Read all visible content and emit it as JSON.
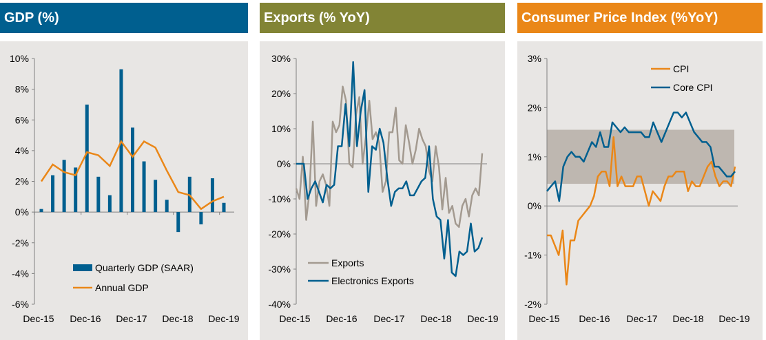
{
  "colors": {
    "navy": "#005f8f",
    "olive": "#828435",
    "orange": "#ea8718",
    "grey": "#a39a90",
    "band": "#beb7b0"
  },
  "panels": [
    {
      "title": "GDP (%)",
      "header_color": "#005f8f"
    },
    {
      "title": "Exports (% YoY)",
      "header_color": "#828435"
    },
    {
      "title": "Consumer Price Index (%YoY)",
      "header_color": "#ea8718"
    }
  ],
  "chart_data": [
    {
      "type": "bar",
      "title": "GDP (%)",
      "x_ticks": [
        "Dec-15",
        "Dec-16",
        "Dec-17",
        "Dec-18",
        "Dec-19"
      ],
      "y_ticks": [
        "10%",
        "8%",
        "6%",
        "4%",
        "2%",
        "0%",
        "-2%",
        "-4%",
        "-6%"
      ],
      "ylim": [
        -6,
        10
      ],
      "series": [
        {
          "name": "Quarterly GDP (SAAR)",
          "type": "bar",
          "color": "#005f8f",
          "values": [
            0.2,
            2.4,
            3.4,
            2.9,
            7.0,
            2.3,
            1.1,
            9.3,
            5.5,
            3.3,
            2.1,
            0.8,
            -1.3,
            2.3,
            -0.8,
            2.2,
            0.6
          ]
        },
        {
          "name": "Annual GDP",
          "type": "line",
          "color": "#ea8718",
          "values": [
            2.0,
            3.1,
            2.6,
            2.4,
            3.9,
            3.7,
            3.0,
            4.6,
            3.6,
            4.6,
            4.2,
            2.7,
            1.3,
            1.1,
            0.2,
            0.7,
            1.0
          ]
        }
      ],
      "legend_position": "bottom"
    },
    {
      "type": "line",
      "title": "Exports (% YoY)",
      "x_ticks": [
        "Dec-15",
        "Dec-16",
        "Dec-17",
        "Dec-18",
        "Dec-19"
      ],
      "y_ticks": [
        "30%",
        "20%",
        "10%",
        "0%",
        "-10%",
        "-20%",
        "-30%",
        "-40%"
      ],
      "ylim": [
        -40,
        30
      ],
      "series": [
        {
          "name": "Exports",
          "color": "#a39a90",
          "values": [
            -7,
            -10,
            2,
            -16,
            -8,
            12,
            -12,
            -5,
            -3,
            -6,
            -12,
            12,
            9,
            11,
            22,
            18,
            0,
            -1,
            14,
            19,
            0,
            8,
            18,
            7,
            9,
            6,
            -8,
            -5,
            9,
            9,
            16,
            1,
            0,
            11,
            6,
            0,
            4,
            10,
            7,
            5,
            -2,
            -5,
            5,
            -1,
            -13,
            -4,
            -14,
            -12,
            -17,
            -18,
            -12,
            -10,
            -15,
            -9,
            -7,
            -9,
            3
          ]
        },
        {
          "name": "Electronics Exports",
          "color": "#005f8f",
          "values": [
            0,
            0,
            0,
            -10,
            -7,
            -5,
            -8,
            -11,
            -6,
            -7,
            -6,
            5,
            5,
            17,
            5,
            29,
            5,
            15,
            21,
            -8,
            5,
            4,
            10,
            6,
            -4,
            -12,
            -8,
            -7,
            -7,
            -5,
            -9,
            -9,
            -7,
            -5,
            -4,
            5,
            -10,
            -15,
            -16,
            -27,
            -16,
            -31,
            -32,
            -25,
            -26,
            -25,
            -17,
            -25,
            -24,
            -21
          ]
        }
      ],
      "legend_position": "bottom-left"
    },
    {
      "type": "line",
      "title": "Consumer Price Index (%YoY)",
      "x_ticks": [
        "Dec-15",
        "Dec-16",
        "Dec-17",
        "Dec-18",
        "Dec-19"
      ],
      "y_ticks": [
        "3%",
        "2%",
        "1%",
        "0%",
        "-1%",
        "-2%"
      ],
      "ylim": [
        -2,
        3
      ],
      "band": [
        0.45,
        1.55
      ],
      "series": [
        {
          "name": "CPI",
          "color": "#ea8718",
          "values": [
            -0.6,
            -0.6,
            -0.8,
            -1.0,
            -0.5,
            -1.6,
            -0.7,
            -0.7,
            -0.3,
            -0.2,
            -0.1,
            0.0,
            0.2,
            0.6,
            0.7,
            0.7,
            0.4,
            1.4,
            0.4,
            0.6,
            0.4,
            0.4,
            0.4,
            0.6,
            0.6,
            0.3,
            0.0,
            0.3,
            0.2,
            0.1,
            0.4,
            0.6,
            0.6,
            0.7,
            0.7,
            0.7,
            0.3,
            0.5,
            0.4,
            0.4,
            0.6,
            0.8,
            0.9,
            0.6,
            0.4,
            0.5,
            0.5,
            0.4,
            0.8
          ]
        },
        {
          "name": "Core CPI",
          "color": "#005f8f",
          "values": [
            0.3,
            0.4,
            0.5,
            0.1,
            0.8,
            1.0,
            1.1,
            1.0,
            1.0,
            0.9,
            1.1,
            1.3,
            1.2,
            1.5,
            1.2,
            1.2,
            1.7,
            1.6,
            1.5,
            1.6,
            1.5,
            1.5,
            1.5,
            1.5,
            1.4,
            1.4,
            1.7,
            1.5,
            1.3,
            1.5,
            1.7,
            1.9,
            1.9,
            1.8,
            1.9,
            1.7,
            1.5,
            1.4,
            1.3,
            1.3,
            1.2,
            0.8,
            0.8,
            0.7,
            0.6,
            0.6,
            0.7
          ]
        }
      ],
      "legend_position": "top-left"
    }
  ]
}
